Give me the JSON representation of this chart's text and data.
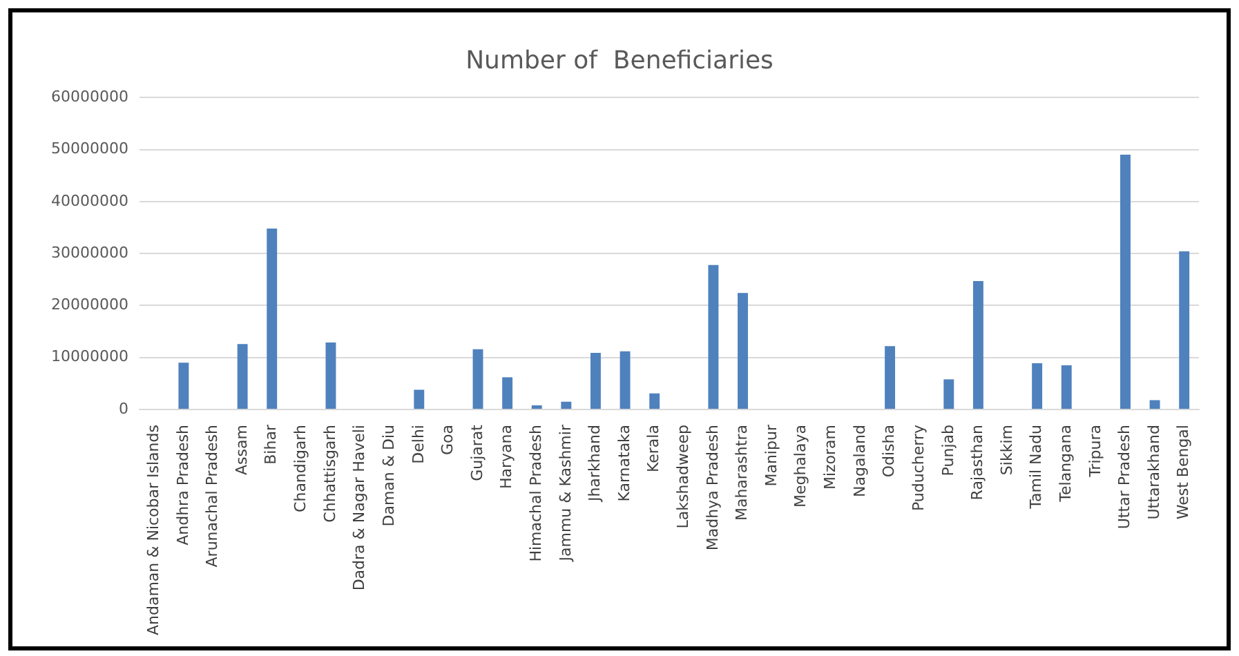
{
  "chart_data": {
    "type": "bar",
    "title": "Number of  Beneficiaries",
    "categories": [
      "Andaman & Nicobar Islands",
      "Andhra Pradesh",
      "Arunachal Pradesh",
      "Assam",
      "Bihar",
      "Chandigarh",
      "Chhattisgarh",
      "Dadra & Nagar Haveli",
      "Daman & Diu",
      "Delhi",
      "Goa",
      "Gujarat",
      "Haryana",
      "Himachal Pradesh",
      "Jammu & Kashmir",
      "Jharkhand",
      "Karnataka",
      "Kerala",
      "Lakshadweep",
      "Madhya Pradesh",
      "Maharashtra",
      "Manipur",
      "Meghalaya",
      "Mizoram",
      "Nagaland",
      "Odisha",
      "Puducherry",
      "Punjab",
      "Rajasthan",
      "Sikkim",
      "Tamil Nadu",
      "Telangana",
      "Tripura",
      "Uttar Pradesh",
      "Uttarakhand",
      "West Bengal"
    ],
    "values": [
      0,
      9000000,
      0,
      12600000,
      34800000,
      0,
      12900000,
      0,
      0,
      3800000,
      0,
      11600000,
      6200000,
      800000,
      1500000,
      10900000,
      11200000,
      3100000,
      0,
      27800000,
      22400000,
      0,
      0,
      0,
      0,
      12200000,
      0,
      5800000,
      24700000,
      0,
      8900000,
      8500000,
      0,
      49000000,
      1800000,
      30400000
    ],
    "color": "#4f81bd",
    "ylim": [
      0,
      60000000
    ],
    "yticks": [
      0,
      10000000,
      20000000,
      30000000,
      40000000,
      50000000,
      60000000
    ],
    "grid": "y"
  }
}
